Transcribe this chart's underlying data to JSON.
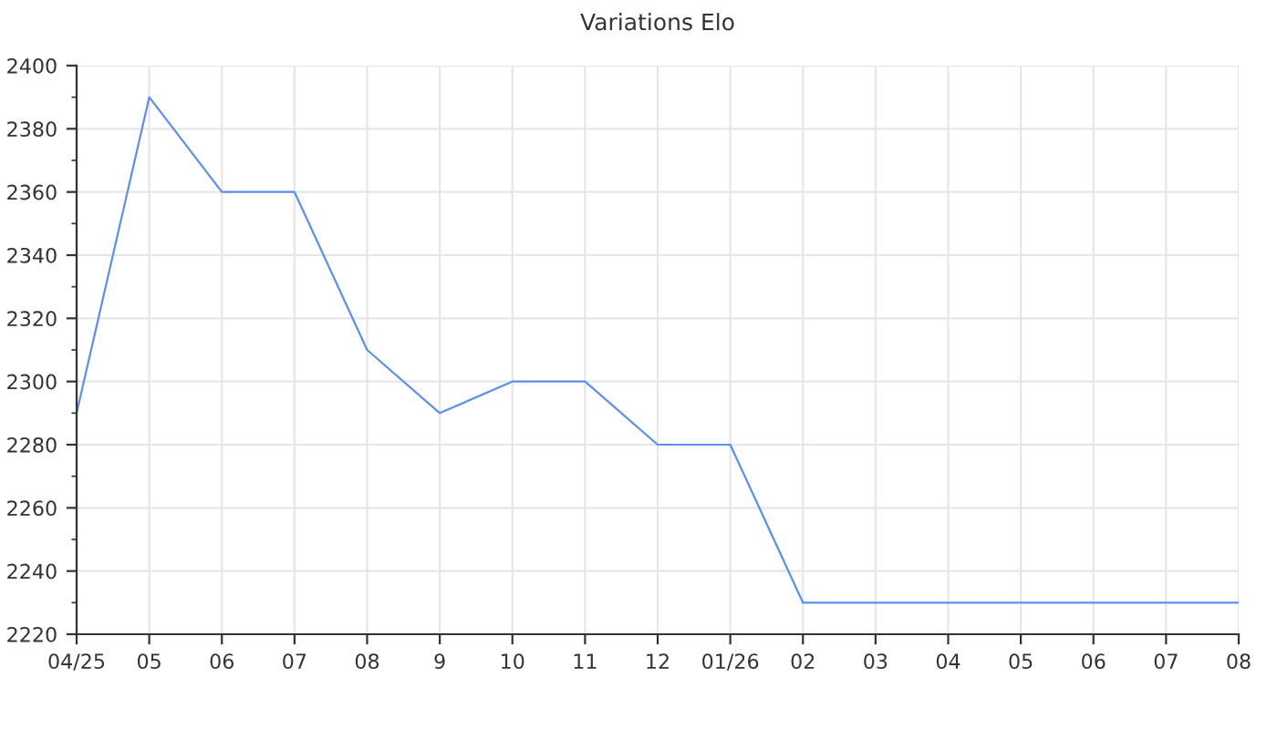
{
  "chart_data": {
    "type": "line",
    "title": "Variations Elo",
    "categories": [
      "04/25",
      "05",
      "06",
      "07",
      "08",
      "9",
      "10",
      "11",
      "12",
      "01/26",
      "02",
      "03",
      "04",
      "05",
      "06",
      "07",
      "08"
    ],
    "series": [
      {
        "color": "#5b8ff0",
        "values": [
          2290,
          2390,
          2360,
          2360,
          2310,
          2290,
          2300,
          2300,
          2280,
          2280,
          2230,
          2230,
          2230,
          2230,
          2230,
          2230,
          2230
        ]
      }
    ],
    "ylim": [
      2220,
      2400
    ],
    "yticks": [
      2220,
      2240,
      2260,
      2280,
      2300,
      2320,
      2340,
      2360,
      2380,
      2400
    ],
    "grid": true,
    "marker": "none",
    "line_style": "solid"
  }
}
